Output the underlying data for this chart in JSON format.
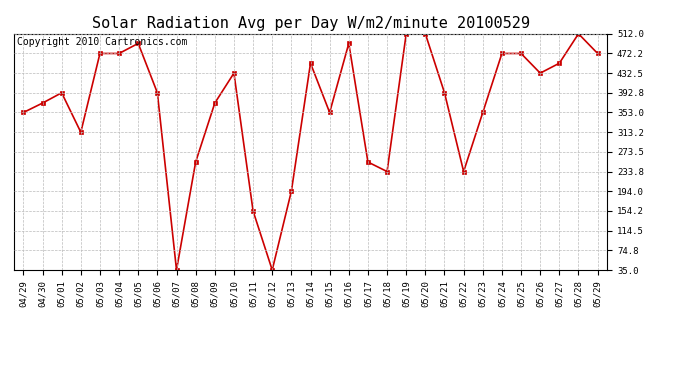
{
  "title": "Solar Radiation Avg per Day W/m2/minute 20100529",
  "copyright": "Copyright 2010 Cartronics.com",
  "dates": [
    "04/29",
    "04/30",
    "05/01",
    "05/02",
    "05/03",
    "05/04",
    "05/05",
    "05/06",
    "05/07",
    "05/08",
    "05/09",
    "05/10",
    "05/11",
    "05/12",
    "05/13",
    "05/14",
    "05/15",
    "05/16",
    "05/17",
    "05/18",
    "05/19",
    "05/20",
    "05/21",
    "05/22",
    "05/23",
    "05/24",
    "05/25",
    "05/26",
    "05/27",
    "05/28",
    "05/29"
  ],
  "values": [
    353.0,
    372.0,
    392.8,
    313.2,
    472.2,
    472.2,
    492.5,
    392.8,
    35.0,
    253.0,
    372.0,
    432.5,
    154.2,
    35.0,
    194.0,
    452.5,
    353.0,
    492.5,
    253.0,
    233.8,
    512.0,
    512.0,
    392.8,
    233.8,
    353.0,
    472.2,
    472.2,
    432.5,
    452.5,
    512.0,
    472.2
  ],
  "line_color": "#cc0000",
  "marker": "s",
  "marker_size": 3,
  "background_color": "#ffffff",
  "grid_color": "#bbbbbb",
  "yticks": [
    35.0,
    74.8,
    114.5,
    154.2,
    194.0,
    233.8,
    273.5,
    313.2,
    353.0,
    392.8,
    432.5,
    472.2,
    512.0
  ],
  "ylim_min": 35.0,
  "ylim_max": 512.0,
  "title_fontsize": 11,
  "tick_fontsize": 6.5,
  "copyright_fontsize": 7
}
